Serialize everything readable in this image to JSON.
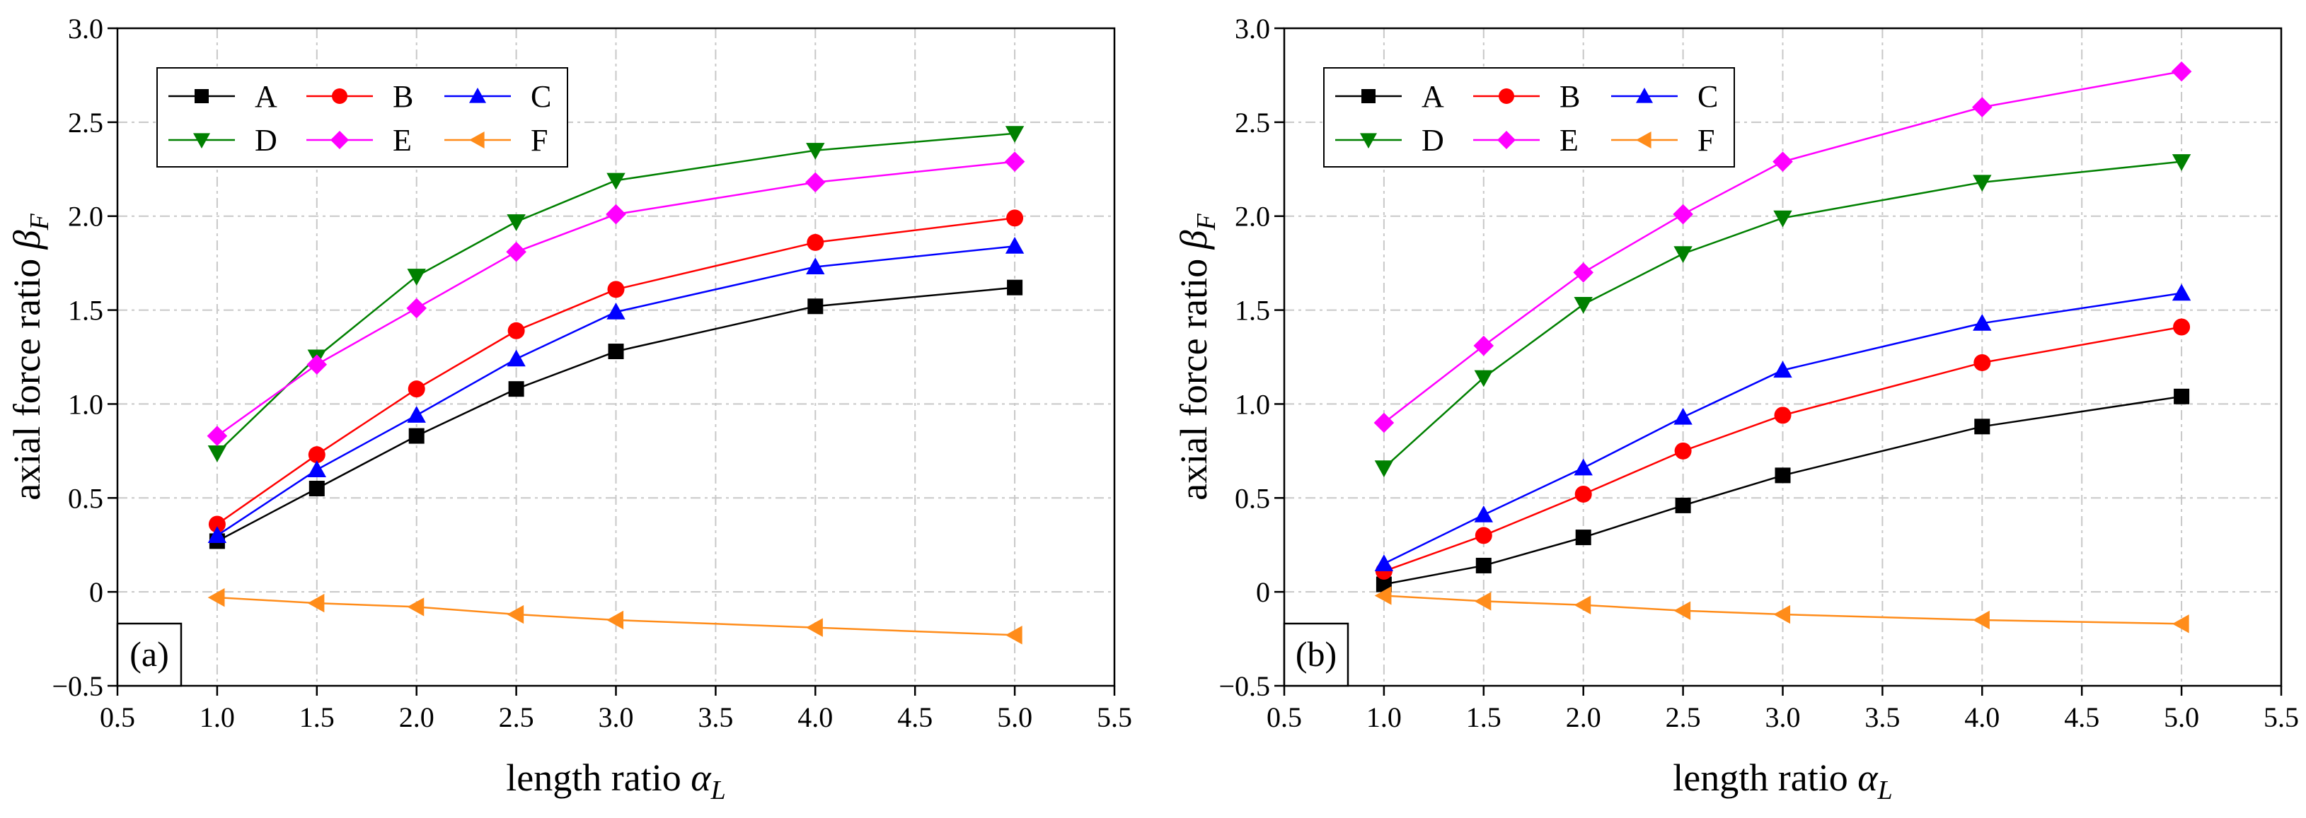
{
  "chart_data": [
    {
      "type": "line",
      "panel_label": "(a)",
      "xlabel_text": "length ratio",
      "xlabel_symbol": "α",
      "xlabel_sub": "L",
      "ylabel_text": "axial force ratio",
      "ylabel_symbol": "β",
      "ylabel_sub": "F",
      "xlim": [
        0.5,
        5.5
      ],
      "ylim": [
        -0.5,
        3.0
      ],
      "xticks": [
        0.5,
        1.0,
        1.5,
        2.0,
        2.5,
        3.0,
        3.5,
        4.0,
        4.5,
        5.0,
        5.5
      ],
      "xtick_labels": [
        "0.5",
        "1.0",
        "1.5",
        "2.0",
        "2.5",
        "3.0",
        "3.5",
        "4.0",
        "4.5",
        "5.0",
        "5.5"
      ],
      "yticks": [
        -0.5,
        0,
        0.5,
        1.0,
        1.5,
        2.0,
        2.5,
        3.0
      ],
      "ytick_labels": [
        "−0.5",
        "0",
        "0.5",
        "1.0",
        "1.5",
        "2.0",
        "2.5",
        "3.0"
      ],
      "grid": true,
      "legend_position": "top-left",
      "x": [
        1.0,
        1.5,
        2.0,
        2.5,
        3.0,
        4.0,
        5.0
      ],
      "series": [
        {
          "name": "A",
          "color": "#000000",
          "marker": "square",
          "values": [
            0.27,
            0.55,
            0.83,
            1.08,
            1.28,
            1.52,
            1.62
          ]
        },
        {
          "name": "B",
          "color": "#ff0000",
          "marker": "circle",
          "values": [
            0.36,
            0.73,
            1.08,
            1.39,
            1.61,
            1.86,
            1.99
          ]
        },
        {
          "name": "C",
          "color": "#0000ff",
          "marker": "triangle-up",
          "values": [
            0.3,
            0.65,
            0.94,
            1.24,
            1.49,
            1.73,
            1.84
          ]
        },
        {
          "name": "D",
          "color": "#008000",
          "marker": "triangle-down",
          "values": [
            0.74,
            1.25,
            1.68,
            1.97,
            2.19,
            2.35,
            2.44
          ]
        },
        {
          "name": "E",
          "color": "#ff00ff",
          "marker": "diamond",
          "values": [
            0.83,
            1.21,
            1.51,
            1.81,
            2.01,
            2.18,
            2.29
          ]
        },
        {
          "name": "F",
          "color": "#ff8c1a",
          "marker": "triangle-left",
          "values": [
            -0.03,
            -0.06,
            -0.08,
            -0.12,
            -0.15,
            -0.19,
            -0.23
          ]
        }
      ]
    },
    {
      "type": "line",
      "panel_label": "(b)",
      "xlabel_text": "length ratio",
      "xlabel_symbol": "α",
      "xlabel_sub": "L",
      "ylabel_text": "axial force ratio",
      "ylabel_symbol": "β",
      "ylabel_sub": "F",
      "xlim": [
        0.5,
        5.5
      ],
      "ylim": [
        -0.5,
        3.0
      ],
      "xticks": [
        0.5,
        1.0,
        1.5,
        2.0,
        2.5,
        3.0,
        3.5,
        4.0,
        4.5,
        5.0,
        5.5
      ],
      "xtick_labels": [
        "0.5",
        "1.0",
        "1.5",
        "2.0",
        "2.5",
        "3.0",
        "3.5",
        "4.0",
        "4.5",
        "5.0",
        "5.5"
      ],
      "yticks": [
        -0.5,
        0,
        0.5,
        1.0,
        1.5,
        2.0,
        2.5,
        3.0
      ],
      "ytick_labels": [
        "−0.5",
        "0",
        "0.5",
        "1.0",
        "1.5",
        "2.0",
        "2.5",
        "3.0"
      ],
      "grid": true,
      "legend_position": "top-left",
      "x": [
        1.0,
        1.5,
        2.0,
        2.5,
        3.0,
        4.0,
        5.0
      ],
      "series": [
        {
          "name": "A",
          "color": "#000000",
          "marker": "square",
          "values": [
            0.04,
            0.14,
            0.29,
            0.46,
            0.62,
            0.88,
            1.04
          ]
        },
        {
          "name": "B",
          "color": "#ff0000",
          "marker": "circle",
          "values": [
            0.11,
            0.3,
            0.52,
            0.75,
            0.94,
            1.22,
            1.41
          ]
        },
        {
          "name": "C",
          "color": "#0000ff",
          "marker": "triangle-up",
          "values": [
            0.15,
            0.41,
            0.66,
            0.93,
            1.18,
            1.43,
            1.59
          ]
        },
        {
          "name": "D",
          "color": "#008000",
          "marker": "triangle-down",
          "values": [
            0.66,
            1.14,
            1.53,
            1.8,
            1.99,
            2.18,
            2.29
          ]
        },
        {
          "name": "E",
          "color": "#ff00ff",
          "marker": "diamond",
          "values": [
            0.9,
            1.31,
            1.7,
            2.01,
            2.29,
            2.58,
            2.77
          ]
        },
        {
          "name": "F",
          "color": "#ff8c1a",
          "marker": "triangle-left",
          "values": [
            -0.02,
            -0.05,
            -0.07,
            -0.1,
            -0.12,
            -0.15,
            -0.17
          ]
        }
      ]
    }
  ]
}
